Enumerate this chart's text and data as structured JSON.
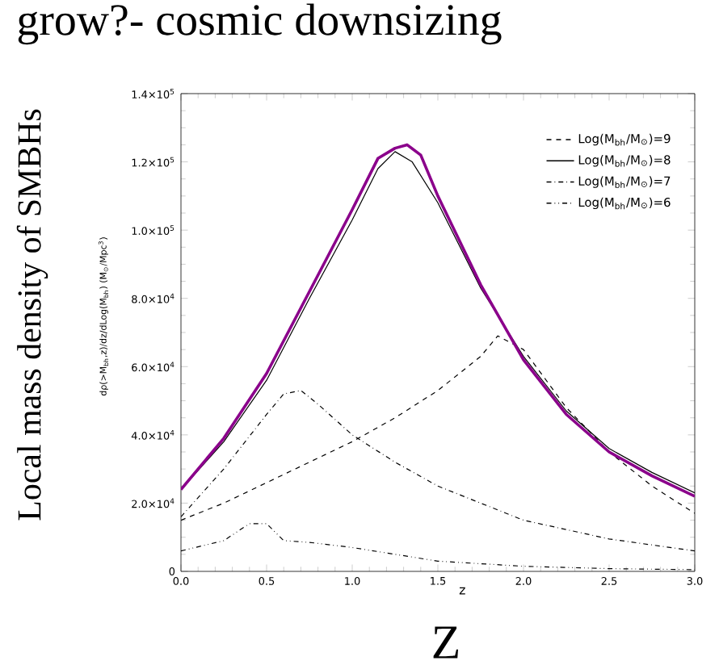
{
  "chart_data": {
    "type": "line",
    "title": "grow?- cosmic downsizing",
    "xlabel": "z",
    "ylabel": "Local mass density of SMBHs",
    "annotations": [
      "dρ(>M$_{bh}$,z)/dz/dLog(M$_{bh}$)  (M$_{⊙}$/Mpc$^{3}$)",
      "Z"
    ],
    "xlim": [
      0,
      3
    ],
    "ylim": [
      0,
      140000
    ],
    "xticks": [
      {
        "value": 0,
        "label": "0.0"
      },
      {
        "value": 0.5,
        "label": "0.5"
      },
      {
        "value": 1,
        "label": "1.0"
      },
      {
        "value": 1.5,
        "label": "1.5"
      },
      {
        "value": 2,
        "label": "2.0"
      },
      {
        "value": 2.5,
        "label": "2.5"
      },
      {
        "value": 3,
        "label": "3.0"
      }
    ],
    "yticks": [
      0,
      {
        "value": 20000,
        "label": "2.0×10$^{4}$"
      },
      {
        "value": 40000,
        "label": "4.0×10$^{4}$"
      },
      {
        "value": 60000,
        "label": "6.0×10$^{4}$"
      },
      {
        "value": 80000,
        "label": "8.0×10$^{4}$"
      },
      {
        "value": 100000,
        "label": "1.0×10$^{5}$"
      },
      {
        "value": 120000,
        "label": "1.2×10$^{5}$"
      },
      {
        "value": 140000,
        "label": "1.4×10$^{5}$"
      }
    ],
    "legend": "top right",
    "grid": false,
    "marker": "none",
    "series": [
      {
        "name": "Log(M$_{bh}$/M$_{⊙}$)=9",
        "color": "#000000",
        "line_style": "dashed",
        "x": [
          0,
          0.25,
          0.5,
          0.75,
          1.0,
          1.25,
          1.5,
          1.75,
          1.85,
          2.0,
          2.25,
          2.5,
          2.75,
          3.0
        ],
        "values": [
          15000,
          20000,
          26000,
          32000,
          38000,
          45000,
          53000,
          63000,
          69000,
          65000,
          48000,
          35000,
          25000,
          17000
        ]
      },
      {
        "name": "Log(M$_{bh}$/M$_{⊙}$)=8",
        "color": "#000000",
        "line_style": "solid",
        "x": [
          0,
          0.25,
          0.5,
          0.75,
          1.0,
          1.15,
          1.25,
          1.35,
          1.5,
          1.75,
          2.0,
          2.25,
          2.5,
          2.75,
          3.0
        ],
        "values": [
          24000,
          38000,
          56000,
          80000,
          103000,
          118000,
          123000,
          120000,
          108000,
          83000,
          63000,
          47000,
          36000,
          29000,
          23000
        ]
      },
      {
        "name": "Log(M$_{bh}$/M$_{⊙}$)=7",
        "color": "#000000",
        "line_style": "dashdotted",
        "x": [
          0,
          0.25,
          0.5,
          0.6,
          0.7,
          0.8,
          1.0,
          1.25,
          1.5,
          1.75,
          2.0,
          2.5,
          3.0
        ],
        "values": [
          16000,
          30000,
          46000,
          52000,
          53000,
          49000,
          40000,
          32000,
          25000,
          20000,
          15000,
          9500,
          6000
        ]
      },
      {
        "name": "Log(M$_{bh}$/M$_{⊙}$)=6",
        "color": "#000000",
        "line_style": "dashdotdotted",
        "x": [
          0,
          0.25,
          0.4,
          0.5,
          0.6,
          0.75,
          1.0,
          1.25,
          1.5,
          2.0,
          2.5,
          3.0
        ],
        "values": [
          6000,
          9000,
          14000,
          14000,
          9000,
          8500,
          7000,
          5000,
          3000,
          1500,
          800,
          500
        ]
      },
      {
        "color": "#8b008b",
        "line_style": "solid",
        "x": [
          0,
          0.25,
          0.5,
          0.75,
          1.0,
          1.15,
          1.25,
          1.32,
          1.4,
          1.5,
          1.75,
          2.0,
          2.25,
          2.5,
          2.75,
          3.0
        ],
        "values": [
          24000,
          39000,
          58000,
          82000,
          106000,
          121000,
          124000,
          125000,
          122000,
          110000,
          84000,
          62000,
          46000,
          35000,
          28000,
          22000
        ]
      }
    ]
  }
}
